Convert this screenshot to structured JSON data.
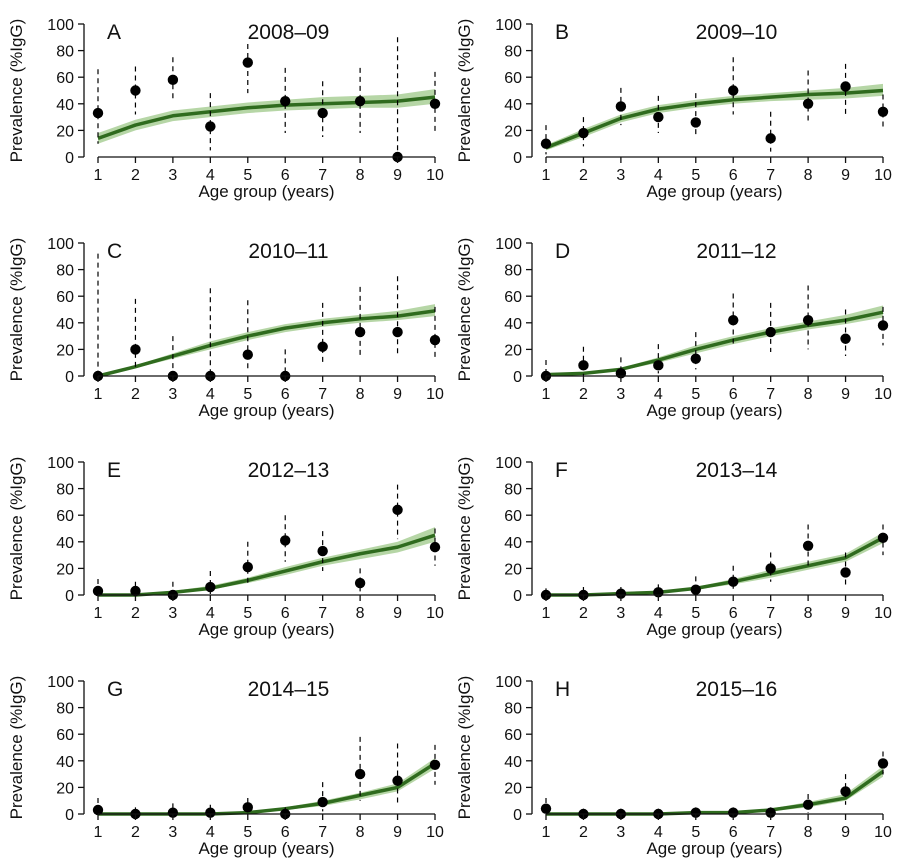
{
  "figure": {
    "shared": {
      "xlabel": "Age group (years)",
      "ylabel": "Prevalence (%IgG)",
      "x_ticks": [
        1,
        2,
        3,
        4,
        5,
        6,
        7,
        8,
        9,
        10
      ],
      "y_ticks": [
        0,
        20,
        40,
        60,
        80,
        100
      ],
      "ylim": [
        0,
        100
      ],
      "xlim": [
        1,
        10
      ]
    },
    "colors": {
      "model_line": "#2f6b1e",
      "model_band": "#a9cf96",
      "observed_point": "#000000",
      "error_bar": "#000000"
    }
  },
  "chart_data": [
    {
      "type": "scatter",
      "panel": "A",
      "title": "2008–09",
      "xlabel": "Age group (years)",
      "ylabel": "Prevalence (%IgG)",
      "x": [
        1,
        2,
        3,
        4,
        5,
        6,
        7,
        8,
        9,
        10
      ],
      "series": [
        {
          "kind": "observed",
          "values": [
            33,
            50,
            58,
            23,
            71,
            42,
            33,
            42,
            0,
            40
          ],
          "lower": [
            10,
            32,
            42,
            5,
            48,
            18,
            15,
            18,
            0,
            18
          ],
          "upper": [
            66,
            68,
            75,
            48,
            85,
            67,
            57,
            67,
            90,
            64
          ]
        },
        {
          "kind": "model",
          "values": [
            14,
            24,
            31,
            34,
            37,
            39,
            40,
            41,
            42,
            45
          ],
          "lower": [
            10,
            20,
            27,
            30,
            33,
            35,
            36,
            37,
            37,
            40
          ],
          "upper": [
            18,
            28,
            35,
            38,
            41,
            43,
            45,
            46,
            47,
            51
          ]
        }
      ],
      "ylim": [
        0,
        100
      ],
      "grid": false
    },
    {
      "type": "scatter",
      "panel": "B",
      "title": "2009–10",
      "xlabel": "Age group (years)",
      "ylabel": "Prevalence (%IgG)",
      "x": [
        1,
        2,
        3,
        4,
        5,
        6,
        7,
        8,
        9,
        10
      ],
      "series": [
        {
          "kind": "observed",
          "values": [
            10,
            18,
            38,
            30,
            26,
            50,
            14,
            40,
            53,
            34
          ],
          "lower": [
            2,
            8,
            24,
            18,
            16,
            32,
            4,
            25,
            30,
            22
          ],
          "upper": [
            24,
            30,
            52,
            46,
            48,
            75,
            34,
            65,
            70,
            47
          ]
        },
        {
          "kind": "model",
          "values": [
            7,
            18,
            29,
            36,
            40,
            43,
            45,
            47,
            48,
            50
          ],
          "lower": [
            5,
            15,
            26,
            33,
            37,
            40,
            42,
            43,
            44,
            46
          ],
          "upper": [
            9,
            21,
            32,
            39,
            43,
            46,
            48,
            50,
            52,
            55
          ]
        }
      ],
      "ylim": [
        0,
        100
      ],
      "grid": false
    },
    {
      "type": "scatter",
      "panel": "C",
      "title": "2010–11",
      "xlabel": "Age group (years)",
      "ylabel": "Prevalence (%IgG)",
      "x": [
        1,
        2,
        3,
        4,
        5,
        6,
        7,
        8,
        9,
        10
      ],
      "series": [
        {
          "kind": "observed",
          "values": [
            0,
            20,
            0,
            0,
            16,
            0,
            22,
            33,
            33,
            27
          ],
          "lower": [
            0,
            5,
            0,
            0,
            4,
            0,
            8,
            15,
            15,
            12
          ],
          "upper": [
            92,
            58,
            30,
            66,
            57,
            20,
            55,
            67,
            75,
            52
          ]
        },
        {
          "kind": "model",
          "values": [
            0,
            7,
            15,
            23,
            30,
            36,
            40,
            43,
            45,
            49
          ],
          "lower": [
            0,
            6,
            13,
            20,
            27,
            33,
            37,
            40,
            42,
            45
          ],
          "upper": [
            0,
            8,
            17,
            26,
            33,
            39,
            43,
            46,
            49,
            54
          ]
        }
      ],
      "ylim": [
        0,
        100
      ],
      "grid": false
    },
    {
      "type": "scatter",
      "panel": "D",
      "title": "2011–12",
      "xlabel": "Age group (years)",
      "ylabel": "Prevalence (%IgG)",
      "x": [
        1,
        2,
        3,
        4,
        5,
        6,
        7,
        8,
        9,
        10
      ],
      "series": [
        {
          "kind": "observed",
          "values": [
            0,
            8,
            2,
            8,
            13,
            42,
            33,
            42,
            28,
            38
          ],
          "lower": [
            0,
            0,
            0,
            2,
            5,
            24,
            18,
            20,
            15,
            23
          ],
          "upper": [
            12,
            22,
            14,
            24,
            33,
            62,
            55,
            68,
            50,
            52
          ]
        },
        {
          "kind": "model",
          "values": [
            1,
            2,
            5,
            12,
            20,
            27,
            33,
            38,
            42,
            48
          ],
          "lower": [
            0,
            1,
            4,
            10,
            17,
            24,
            30,
            35,
            39,
            44
          ],
          "upper": [
            2,
            3,
            6,
            14,
            23,
            30,
            36,
            41,
            46,
            53
          ]
        }
      ],
      "ylim": [
        0,
        100
      ],
      "grid": false
    },
    {
      "type": "scatter",
      "panel": "E",
      "title": "2012–13",
      "xlabel": "Age group (years)",
      "ylabel": "Prevalence (%IgG)",
      "x": [
        1,
        2,
        3,
        4,
        5,
        6,
        7,
        8,
        9,
        10
      ],
      "series": [
        {
          "kind": "observed",
          "values": [
            3,
            3,
            0,
            6,
            21,
            41,
            33,
            9,
            64,
            36
          ],
          "lower": [
            0,
            0,
            0,
            0,
            8,
            25,
            18,
            2,
            42,
            22
          ],
          "upper": [
            12,
            10,
            10,
            18,
            40,
            60,
            48,
            20,
            83,
            50
          ]
        },
        {
          "kind": "model",
          "values": [
            0,
            0,
            2,
            5,
            11,
            18,
            25,
            31,
            36,
            45
          ],
          "lower": [
            0,
            0,
            1,
            4,
            9,
            15,
            22,
            27,
            32,
            40
          ],
          "upper": [
            1,
            1,
            3,
            7,
            13,
            21,
            28,
            34,
            40,
            51
          ]
        }
      ],
      "ylim": [
        0,
        100
      ],
      "grid": false
    },
    {
      "type": "scatter",
      "panel": "F",
      "title": "2013–14",
      "xlabel": "Age group (years)",
      "ylabel": "Prevalence (%IgG)",
      "x": [
        1,
        2,
        3,
        4,
        5,
        6,
        7,
        8,
        9,
        10
      ],
      "series": [
        {
          "kind": "observed",
          "values": [
            0,
            0,
            1,
            2,
            4,
            10,
            20,
            37,
            17,
            43
          ],
          "lower": [
            0,
            0,
            0,
            0,
            0,
            3,
            10,
            20,
            7,
            30
          ],
          "upper": [
            5,
            6,
            6,
            8,
            14,
            22,
            32,
            53,
            32,
            53
          ]
        },
        {
          "kind": "model",
          "values": [
            0,
            0,
            1,
            2,
            5,
            10,
            16,
            22,
            28,
            43
          ],
          "lower": [
            0,
            0,
            0,
            1,
            4,
            8,
            13,
            19,
            25,
            39
          ],
          "upper": [
            1,
            1,
            2,
            3,
            6,
            12,
            19,
            25,
            31,
            47
          ]
        }
      ],
      "ylim": [
        0,
        100
      ],
      "grid": false
    },
    {
      "type": "scatter",
      "panel": "G",
      "title": "2014–15",
      "xlabel": "Age group (years)",
      "ylabel": "Prevalence (%IgG)",
      "x": [
        1,
        2,
        3,
        4,
        5,
        6,
        7,
        8,
        9,
        10
      ],
      "series": [
        {
          "kind": "observed",
          "values": [
            3,
            0,
            1,
            1,
            5,
            0,
            9,
            30,
            25,
            37
          ],
          "lower": [
            0,
            0,
            0,
            0,
            0,
            0,
            2,
            10,
            8,
            22
          ],
          "upper": [
            12,
            5,
            8,
            7,
            12,
            5,
            24,
            58,
            53,
            52
          ]
        },
        {
          "kind": "model",
          "values": [
            0,
            0,
            0,
            0,
            1,
            4,
            8,
            14,
            20,
            38
          ],
          "lower": [
            0,
            0,
            0,
            0,
            0,
            3,
            6,
            11,
            17,
            34
          ],
          "upper": [
            1,
            1,
            1,
            1,
            2,
            5,
            10,
            16,
            23,
            42
          ]
        }
      ],
      "ylim": [
        0,
        100
      ],
      "grid": false
    },
    {
      "type": "scatter",
      "panel": "H",
      "title": "2015–16",
      "xlabel": "Age group (years)",
      "ylabel": "Prevalence (%IgG)",
      "x": [
        1,
        2,
        3,
        4,
        5,
        6,
        7,
        8,
        9,
        10
      ],
      "series": [
        {
          "kind": "observed",
          "values": [
            4,
            0,
            0,
            0,
            1,
            1,
            1,
            7,
            17,
            38
          ],
          "lower": [
            0,
            0,
            0,
            0,
            0,
            0,
            0,
            1,
            7,
            27
          ],
          "upper": [
            12,
            4,
            4,
            4,
            5,
            5,
            5,
            15,
            30,
            47
          ]
        },
        {
          "kind": "model",
          "values": [
            0,
            0,
            0,
            0,
            1,
            1,
            3,
            7,
            12,
            32
          ],
          "lower": [
            0,
            0,
            0,
            0,
            0,
            0,
            2,
            5,
            10,
            28
          ],
          "upper": [
            1,
            1,
            1,
            1,
            1,
            2,
            4,
            9,
            15,
            36
          ]
        }
      ],
      "ylim": [
        0,
        100
      ],
      "grid": false
    }
  ]
}
